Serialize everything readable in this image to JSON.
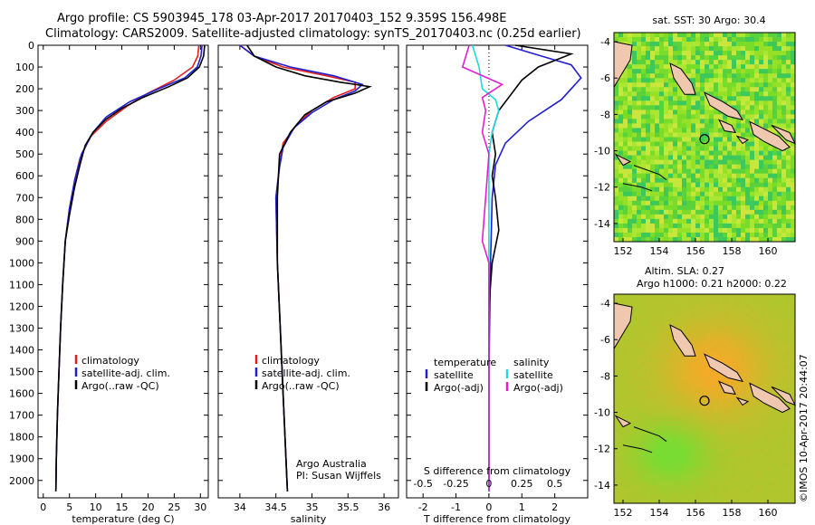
{
  "header": {
    "line1": "Argo profile: CS 5903945_178 03-Apr-2017 20170403_152 9.359S 156.498E",
    "line2": "Climatology: CARS2009. Satellite-adjusted climatology: synTS_20170403.nc (0.25d earlier)"
  },
  "colors": {
    "climatology": "#e02020",
    "satellite": "#1f1fd0",
    "argo": "#000000",
    "salinity_sat": "#20d8e0",
    "salinity_argo": "#e020d0",
    "land": "#f0c8b0"
  },
  "chart_data": [
    {
      "type": "line",
      "xlabel": "temperature (deg C)",
      "xlim": [
        -1,
        31.5
      ],
      "ylim": [
        2080,
        0
      ],
      "x_ticks": [
        0,
        5,
        10,
        15,
        20,
        25,
        30
      ],
      "y_ticks": [
        0,
        100,
        200,
        300,
        400,
        500,
        600,
        700,
        800,
        900,
        1000,
        1100,
        1200,
        1300,
        1400,
        1500,
        1600,
        1700,
        1800,
        1900,
        2000
      ],
      "legend": [
        "climatology",
        "satellite-adj. clim.",
        "Argo(..raw -QC)"
      ],
      "series": [
        {
          "name": "climatology",
          "color": "#e02020",
          "points": [
            [
              29.7,
              0
            ],
            [
              29.5,
              50
            ],
            [
              28.5,
              100
            ],
            [
              25,
              160
            ],
            [
              20,
              220
            ],
            [
              16,
              280
            ],
            [
              12,
              350
            ],
            [
              9,
              420
            ],
            [
              7,
              520
            ],
            [
              6,
              620
            ],
            [
              5,
              750
            ],
            [
              4.2,
              900
            ],
            [
              3.7,
              1100
            ],
            [
              3.3,
              1300
            ],
            [
              3,
              1500
            ],
            [
              2.7,
              1700
            ],
            [
              2.5,
              1900
            ],
            [
              2.4,
              2050
            ]
          ]
        },
        {
          "name": "satellite-adj. clim.",
          "color": "#1f1fd0",
          "points": [
            [
              30.3,
              0
            ],
            [
              30.1,
              50
            ],
            [
              29.4,
              100
            ],
            [
              27,
              150
            ],
            [
              22,
              200
            ],
            [
              16.5,
              260
            ],
            [
              12,
              330
            ],
            [
              9.5,
              400
            ],
            [
              7.3,
              500
            ],
            [
              6,
              620
            ],
            [
              5,
              750
            ],
            [
              4.2,
              900
            ],
            [
              3.7,
              1100
            ],
            [
              3.3,
              1300
            ],
            [
              3,
              1500
            ],
            [
              2.7,
              1700
            ],
            [
              2.5,
              1900
            ],
            [
              2.4,
              2050
            ]
          ]
        },
        {
          "name": "Argo(..raw -QC)",
          "color": "#000000",
          "points": [
            [
              30.8,
              0
            ],
            [
              30.6,
              50
            ],
            [
              29.8,
              100
            ],
            [
              27.5,
              150
            ],
            [
              24,
              190
            ],
            [
              19,
              240
            ],
            [
              15,
              290
            ],
            [
              12,
              340
            ],
            [
              9.5,
              400
            ],
            [
              8,
              460
            ],
            [
              7,
              550
            ],
            [
              6,
              650
            ],
            [
              5,
              780
            ],
            [
              4.2,
              900
            ],
            [
              3.7,
              1100
            ],
            [
              3.3,
              1300
            ],
            [
              3,
              1500
            ],
            [
              2.7,
              1700
            ],
            [
              2.5,
              1900
            ],
            [
              2.4,
              2050
            ]
          ]
        }
      ]
    },
    {
      "type": "line",
      "xlabel": "salinity",
      "xlim": [
        33.7,
        36.2
      ],
      "ylim": [
        2080,
        0
      ],
      "x_ticks": [
        34,
        34.5,
        35,
        35.5,
        36
      ],
      "legend": [
        "climatology",
        "satellite-adj. clim.",
        "Argo(..raw -QC)"
      ],
      "annotation": [
        "Argo Australia",
        "PI: Susan Wijffels"
      ],
      "series": [
        {
          "name": "climatology",
          "color": "#e02020",
          "points": [
            [
              34.0,
              0
            ],
            [
              34.2,
              50
            ],
            [
              34.6,
              100
            ],
            [
              35.2,
              140
            ],
            [
              35.6,
              170
            ],
            [
              35.6,
              200
            ],
            [
              35.3,
              240
            ],
            [
              35.0,
              300
            ],
            [
              34.8,
              360
            ],
            [
              34.6,
              450
            ],
            [
              34.55,
              550
            ],
            [
              34.5,
              700
            ],
            [
              34.52,
              1000
            ],
            [
              34.56,
              1300
            ],
            [
              34.6,
              1600
            ],
            [
              34.64,
              1900
            ],
            [
              34.66,
              2050
            ]
          ]
        },
        {
          "name": "satellite-adj. clim.",
          "color": "#1f1fd0",
          "points": [
            [
              34.0,
              0
            ],
            [
              34.2,
              50
            ],
            [
              34.7,
              100
            ],
            [
              35.3,
              140
            ],
            [
              35.7,
              180
            ],
            [
              35.6,
              210
            ],
            [
              35.3,
              250
            ],
            [
              35.0,
              310
            ],
            [
              34.75,
              380
            ],
            [
              34.6,
              470
            ],
            [
              34.55,
              560
            ],
            [
              34.5,
              700
            ],
            [
              34.52,
              1000
            ],
            [
              34.56,
              1300
            ],
            [
              34.6,
              1600
            ],
            [
              34.64,
              1900
            ],
            [
              34.66,
              2050
            ]
          ]
        },
        {
          "name": "Argo(..raw -QC)",
          "color": "#000000",
          "points": [
            [
              34.1,
              0
            ],
            [
              34.2,
              50
            ],
            [
              34.5,
              100
            ],
            [
              34.9,
              140
            ],
            [
              35.4,
              170
            ],
            [
              35.8,
              190
            ],
            [
              35.6,
              220
            ],
            [
              35.2,
              260
            ],
            [
              34.9,
              320
            ],
            [
              34.7,
              400
            ],
            [
              34.55,
              500
            ],
            [
              34.52,
              700
            ],
            [
              34.52,
              1000
            ],
            [
              34.56,
              1300
            ],
            [
              34.6,
              1600
            ],
            [
              34.64,
              1900
            ],
            [
              34.66,
              2050
            ]
          ]
        }
      ]
    },
    {
      "type": "line",
      "xlabel": "T difference from climatology",
      "top_axis_label": "S difference from climatology",
      "xlim": [
        -2.5,
        3.0
      ],
      "ylim": [
        2080,
        0
      ],
      "x_ticks": [
        -2,
        -1,
        0,
        1,
        2
      ],
      "top_ticks": [
        "-0.5",
        "-0.25",
        "0",
        "0.25",
        "0.5"
      ],
      "top_tick_positions_T": [
        -2,
        -1,
        0,
        1,
        2
      ],
      "legend_temperature": [
        "temperature",
        "satellite",
        "Argo(-adj)"
      ],
      "legend_salinity": [
        "salinity",
        "satellite",
        "Argo(-adj)"
      ],
      "series": [
        {
          "name": "satellite",
          "color": "#1f1fd0",
          "points": [
            [
              0.5,
              0
            ],
            [
              1.6,
              50
            ],
            [
              2.5,
              90
            ],
            [
              2.8,
              150
            ],
            [
              2.2,
              250
            ],
            [
              1.2,
              350
            ],
            [
              0.5,
              450
            ],
            [
              0.2,
              550
            ],
            [
              0.1,
              700
            ],
            [
              0.05,
              1000
            ],
            [
              0,
              1500
            ],
            [
              0,
              2050
            ]
          ]
        },
        {
          "name": "Argo(-adj)",
          "color": "#000000",
          "points": [
            [
              0.8,
              0
            ],
            [
              2.5,
              40
            ],
            [
              1.5,
              100
            ],
            [
              1.0,
              160
            ],
            [
              0.7,
              220
            ],
            [
              0.3,
              300
            ],
            [
              0.1,
              400
            ],
            [
              0.2,
              500
            ],
            [
              0.1,
              600
            ],
            [
              0.2,
              700
            ],
            [
              0.3,
              850
            ],
            [
              0.1,
              1000
            ],
            [
              0,
              1200
            ],
            [
              0,
              2050
            ]
          ]
        },
        {
          "name": "satellite",
          "color": "#20d8e0",
          "points": [
            [
              -0.5,
              0
            ],
            [
              -0.3,
              100
            ],
            [
              -0.2,
              200
            ],
            [
              0.2,
              250
            ],
            [
              0.3,
              300
            ],
            [
              0.1,
              400
            ],
            [
              0,
              500
            ],
            [
              0,
              2050
            ]
          ]
        },
        {
          "name": "Argo(-adj)",
          "color": "#e020d0",
          "points": [
            [
              -0.6,
              0
            ],
            [
              -0.8,
              100
            ],
            [
              0.4,
              180
            ],
            [
              -0.2,
              240
            ],
            [
              -0.1,
              300
            ],
            [
              -0.2,
              400
            ],
            [
              0,
              500
            ],
            [
              -0.1,
              700
            ],
            [
              -0.2,
              900
            ],
            [
              0,
              1000
            ],
            [
              0,
              2050
            ]
          ]
        }
      ]
    },
    {
      "type": "heatmap",
      "title": "sat. SST: 30 Argo: 30.4",
      "x_ticks": [
        152,
        154,
        156,
        158,
        160
      ],
      "y_ticks": [
        -4,
        -6,
        -8,
        -10,
        -12,
        -14
      ],
      "xlim": [
        151.5,
        161.5
      ],
      "ylim": [
        -15,
        -3.5
      ],
      "marker": {
        "lon": 156.5,
        "lat": -9.36
      }
    },
    {
      "type": "heatmap",
      "title": "Altim. SLA: 0.27",
      "subtitle": "Argo h1000: 0.21 h2000: 0.22",
      "x_ticks": [
        152,
        154,
        156,
        158,
        160
      ],
      "y_ticks": [
        -4,
        -6,
        -8,
        -10,
        -12,
        -14
      ],
      "xlim": [
        151.5,
        161.5
      ],
      "ylim": [
        -15,
        -3.5
      ],
      "marker": {
        "lon": 156.5,
        "lat": -9.36
      }
    }
  ],
  "footer": {
    "credit": "©IMOS 10-Apr-2017 20:44:07"
  }
}
